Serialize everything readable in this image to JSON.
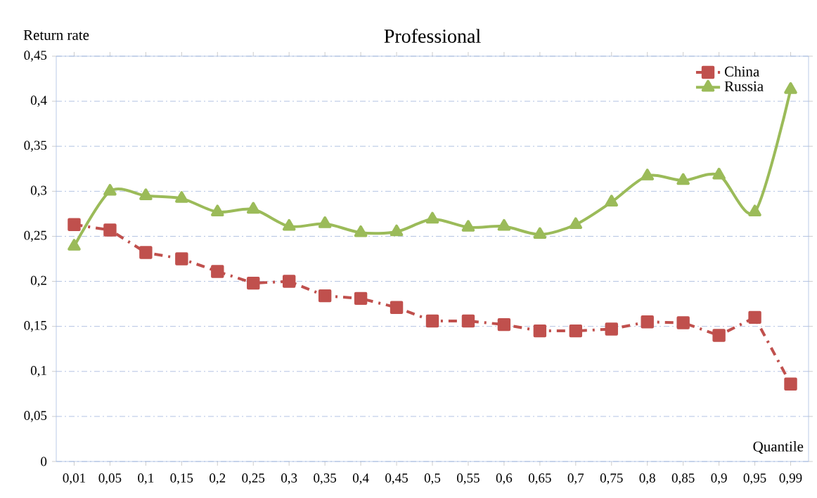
{
  "chart_data": {
    "type": "line",
    "title": "Professional",
    "xlabel": "Quantile",
    "ylabel": "Return rate",
    "categories": [
      "0,01",
      "0,05",
      "0,1",
      "0,15",
      "0,2",
      "0,25",
      "0,3",
      "0,35",
      "0,4",
      "0,45",
      "0,5",
      "0,55",
      "0,6",
      "0,65",
      "0,7",
      "0,75",
      "0,8",
      "0,85",
      "0,9",
      "0,95",
      "0,99"
    ],
    "series": [
      {
        "name": "China",
        "color": "#c0504d",
        "marker": "square",
        "line_style": "dashed",
        "values": [
          0.263,
          0.257,
          0.232,
          0.225,
          0.211,
          0.198,
          0.2,
          0.184,
          0.181,
          0.171,
          0.156,
          0.156,
          0.152,
          0.145,
          0.145,
          0.147,
          0.155,
          0.154,
          0.14,
          0.16,
          0.086
        ]
      },
      {
        "name": "Russia",
        "color": "#9bbb59",
        "marker": "triangle",
        "line_style": "solid",
        "values": [
          0.239,
          0.3,
          0.295,
          0.292,
          0.277,
          0.28,
          0.261,
          0.264,
          0.254,
          0.255,
          0.269,
          0.26,
          0.261,
          0.252,
          0.263,
          0.288,
          0.317,
          0.312,
          0.318,
          0.277,
          0.413
        ]
      }
    ],
    "ylim": [
      0,
      0.45
    ],
    "yticks": [
      {
        "value": 0,
        "label": "0"
      },
      {
        "value": 0.05,
        "label": "0,05"
      },
      {
        "value": 0.1,
        "label": "0,1"
      },
      {
        "value": 0.15,
        "label": "0,15"
      },
      {
        "value": 0.2,
        "label": "0,2"
      },
      {
        "value": 0.25,
        "label": "0,25"
      },
      {
        "value": 0.3,
        "label": "0,3"
      },
      {
        "value": 0.35,
        "label": "0,35"
      },
      {
        "value": 0.4,
        "label": "0,4"
      },
      {
        "value": 0.45,
        "label": "0,45"
      }
    ],
    "grid": "y",
    "legend": "top right"
  }
}
